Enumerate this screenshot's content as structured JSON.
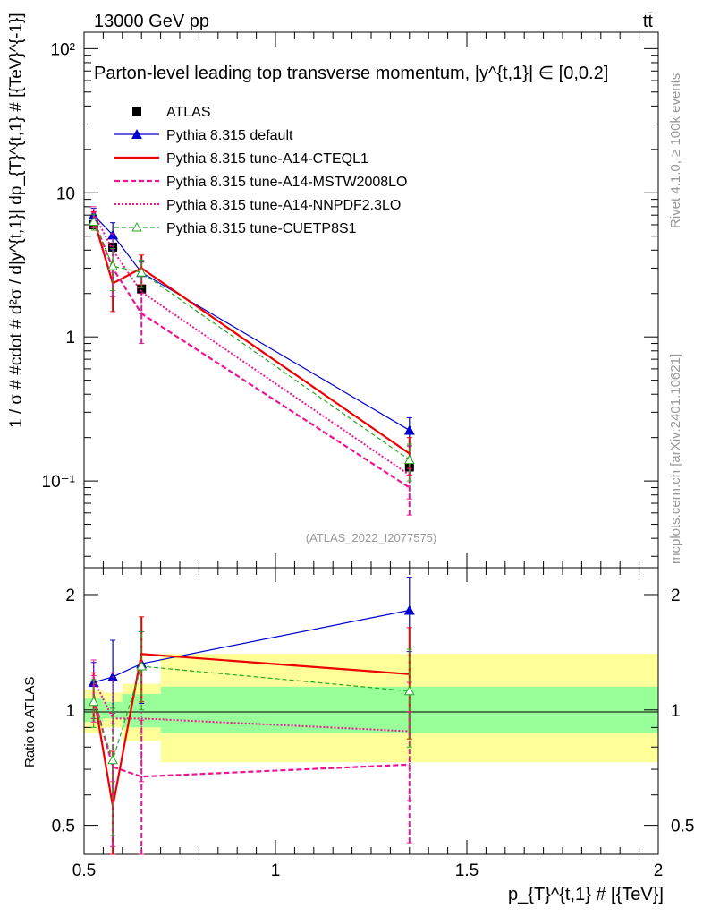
{
  "header": {
    "left": "13000 GeV pp",
    "right": "tt̄"
  },
  "colors": {
    "atlas": "#000000",
    "default": "#0000cc",
    "cteql1": "#ee0000",
    "mstw": "#ee1493",
    "nnpdf": "#ee1493",
    "cuetp": "#22aa22",
    "band_yellow": "#ffff99",
    "band_green": "#99ff99"
  },
  "side_texts": {
    "rivet": "Rivet 4.1.0, ≥ 100k events",
    "mcplots": "mcplots.cern.ch [arXiv:2401.10621]"
  },
  "chart_data": [
    {
      "type": "line",
      "title": "Parton-level leading top transverse momentum, |y^{t,1}| ∈ [0,0.2]",
      "ylabel": "1 / σ # #cdot # d²σ / d|y^{t,1}| dp_{T}^{t,1} # [{TeV}^{-1}]",
      "xlabel": "p_{T}^{t,1} # [{TeV}]",
      "yscale": "log",
      "ylim": [
        0.025,
        130
      ],
      "xlim": [
        0.5,
        2.0
      ],
      "ytick_labels": [
        "10⁻¹",
        "1",
        "10",
        "10²"
      ],
      "watermark": "(ATLAS_2022_I2077575)",
      "legend": [
        "ATLAS",
        "Pythia 8.315 default",
        "Pythia 8.315 tune-A14-CTEQL1",
        "Pythia 8.315 tune-A14-MSTW2008LO",
        "Pythia 8.315 tune-A14-NNPDF2.3LO",
        "Pythia 8.315 tune-CUETP8S1"
      ],
      "x": [
        0.525,
        0.575,
        0.65,
        1.35
      ],
      "series": [
        {
          "name": "ATLAS",
          "values": [
            6.0,
            4.2,
            2.15,
            0.125
          ]
        },
        {
          "name": "Pythia 8.315 default",
          "values": [
            7.0,
            5.1,
            2.8,
            0.225
          ],
          "err": [
            0.8,
            1.1,
            0.5,
            0.05
          ]
        },
        {
          "name": "Pythia 8.315 tune-A14-CTEQL1",
          "values": [
            6.6,
            2.35,
            3.0,
            0.155
          ],
          "err": [
            0.8,
            0.85,
            0.7,
            0.045
          ]
        },
        {
          "name": "Pythia 8.315 tune-A14-MSTW2008LO",
          "values": [
            6.5,
            3.0,
            1.45,
            0.09
          ],
          "err": [
            0.8,
            1.1,
            0.55,
            0.032
          ]
        },
        {
          "name": "Pythia 8.315 tune-A14-NNPDF2.3LO",
          "values": [
            7.2,
            4.0,
            2.05,
            0.11
          ],
          "err": [
            0.8,
            1.2,
            0.6,
            0.035
          ]
        },
        {
          "name": "Pythia 8.315 tune-CUETP8S1",
          "values": [
            6.3,
            3.1,
            2.8,
            0.14
          ],
          "err": [
            0.8,
            1.0,
            0.6,
            0.04
          ]
        }
      ]
    },
    {
      "type": "line",
      "ylabel": "Ratio to ATLAS",
      "xlabel": "p_{T}^{t,1} # [{TeV}]",
      "yscale": "log",
      "ylim": [
        0.42,
        2.35
      ],
      "xlim": [
        0.5,
        2.0
      ],
      "ytick_labels": [
        "0.5",
        "1",
        "2"
      ],
      "xtick_labels": [
        "0.5",
        "1",
        "1.5",
        "2"
      ],
      "bands": {
        "edges": [
          0.5,
          0.55,
          0.6,
          0.7,
          2.0
        ],
        "yellow_low": [
          0.87,
          0.9,
          0.83,
          0.73
        ],
        "yellow_high": [
          1.13,
          1.11,
          1.17,
          1.4
        ],
        "green_low": [
          0.93,
          0.95,
          0.9,
          0.87
        ],
        "green_high": [
          1.07,
          1.05,
          1.1,
          1.15
        ]
      },
      "x": [
        0.525,
        0.575,
        0.65,
        1.35
      ],
      "series": [
        {
          "name": "Pythia 8.315 default",
          "values": [
            1.18,
            1.22,
            1.32,
            1.82
          ],
          "err": [
            0.15,
            0.3,
            0.28,
            0.4
          ]
        },
        {
          "name": "Pythia 8.315 tune-A14-CTEQL1",
          "values": [
            1.1,
            0.56,
            1.4,
            1.24
          ],
          "err": [
            0.15,
            0.22,
            0.35,
            0.4
          ]
        },
        {
          "name": "Pythia 8.315 tune-A14-MSTW2008LO",
          "values": [
            1.08,
            0.71,
            0.67,
            0.72
          ],
          "err": [
            0.15,
            0.27,
            0.27,
            0.27
          ]
        },
        {
          "name": "Pythia 8.315 tune-A14-NNPDF2.3LO",
          "values": [
            1.2,
            0.95,
            0.95,
            0.88
          ],
          "err": [
            0.15,
            0.3,
            0.3,
            0.3
          ]
        },
        {
          "name": "Pythia 8.315 tune-CUETP8S1",
          "values": [
            1.05,
            0.74,
            1.3,
            1.12
          ],
          "err": [
            0.15,
            0.27,
            0.3,
            0.32
          ]
        }
      ]
    }
  ]
}
